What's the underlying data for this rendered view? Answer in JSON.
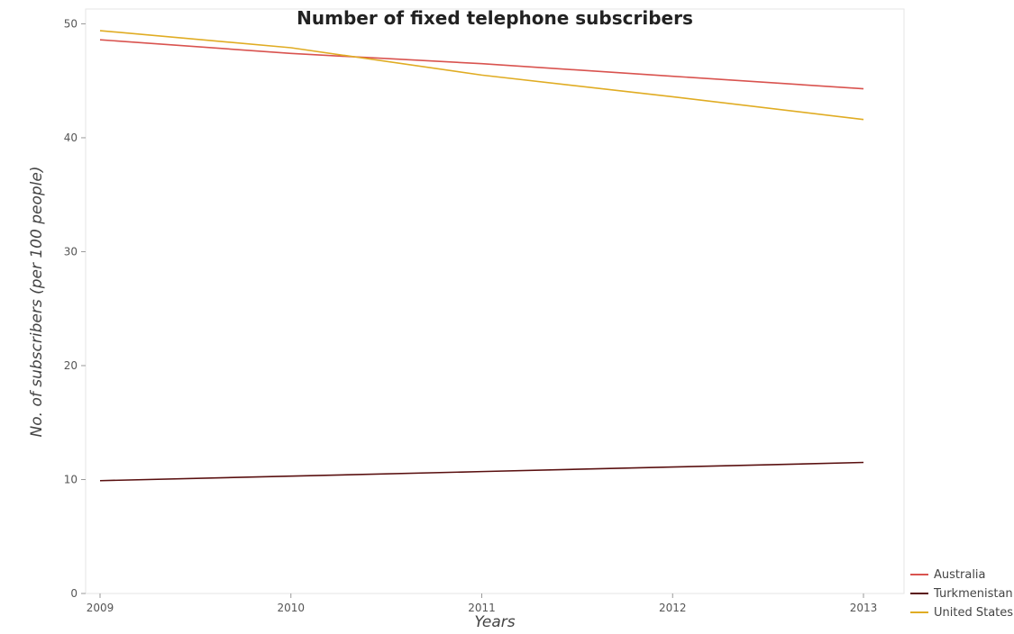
{
  "chart_data": {
    "type": "line",
    "title": "Number of fixed telephone subscribers",
    "xlabel": "Years",
    "ylabel": "No. of subscribers (per 100 people)",
    "categories": [
      "2009",
      "2010",
      "2011",
      "2012",
      "2013"
    ],
    "ylim": [
      0,
      51.3
    ],
    "yticks": [
      "0",
      "10",
      "20",
      "30",
      "40",
      "50"
    ],
    "grid": false,
    "legend_position": "bottom-right",
    "series": [
      {
        "name": "Australia",
        "color": "#d9534f",
        "values": [
          48.6,
          47.4,
          46.5,
          45.4,
          44.3
        ]
      },
      {
        "name": "Turkmenistan",
        "color": "#5a1010",
        "values": [
          9.9,
          10.3,
          10.7,
          11.1,
          11.5
        ]
      },
      {
        "name": "United States",
        "color": "#e0ac23",
        "values": [
          49.4,
          47.9,
          45.5,
          43.6,
          41.6
        ]
      }
    ]
  }
}
